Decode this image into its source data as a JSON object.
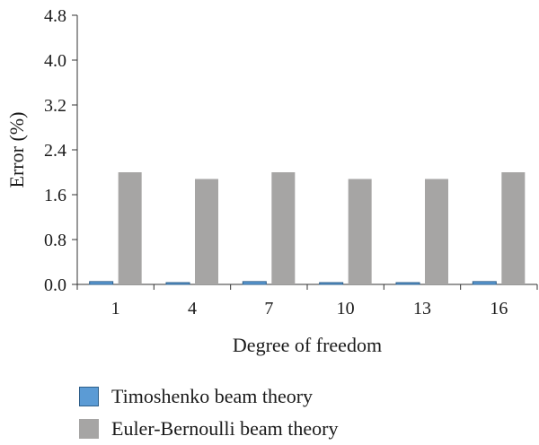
{
  "chart_data": {
    "type": "bar",
    "title": "",
    "xlabel": "Degree of freedom",
    "ylabel": "Error (%)",
    "categories": [
      "1",
      "4",
      "7",
      "10",
      "13",
      "16"
    ],
    "ylim": [
      0,
      4.8
    ],
    "yticks": [
      "0.0",
      "0.8",
      "1.6",
      "2.4",
      "3.2",
      "4.0",
      "4.8"
    ],
    "grid": false,
    "legend_position": "bottom",
    "series": [
      {
        "name": "Timoshenko beam theory",
        "values": [
          0.05,
          0.01,
          0.05,
          0.01,
          0.01,
          0.05
        ],
        "color": "#5b9bd5",
        "border": "#2e5f8a"
      },
      {
        "name": "Euler-Bernoulli beam theory",
        "values": [
          2.0,
          1.88,
          2.0,
          1.88,
          1.88,
          2.0
        ],
        "color": "#a6a5a4",
        "border": "#a6a5a4"
      }
    ]
  }
}
